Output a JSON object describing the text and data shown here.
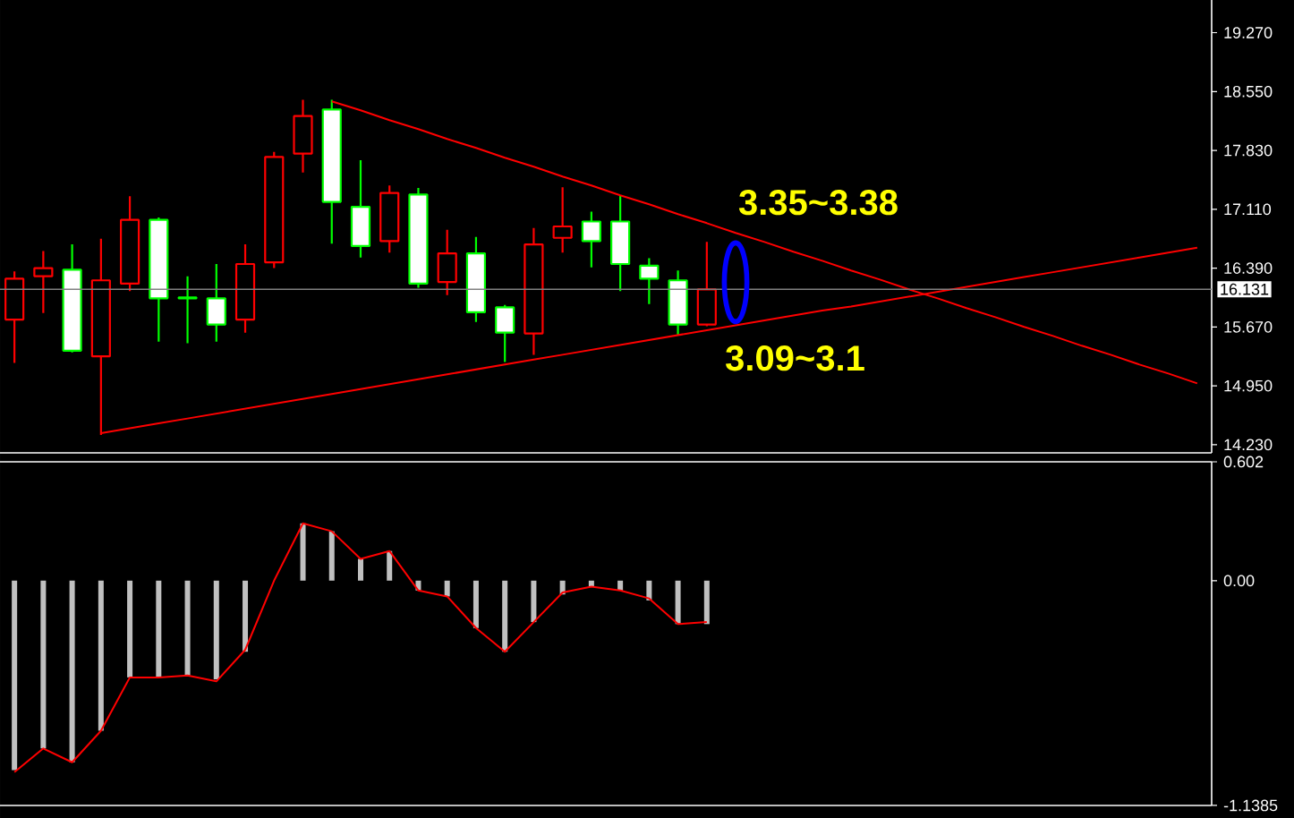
{
  "chart_data": [
    {
      "type": "candlestick",
      "categories": [
        null,
        null,
        null,
        null,
        null,
        null,
        null,
        null,
        null,
        null,
        null,
        null,
        null,
        null,
        null,
        null,
        null,
        null,
        null,
        null,
        null,
        null,
        null,
        null,
        null,
        null,
        null,
        null,
        null,
        null,
        null,
        null,
        null,
        null,
        null,
        null,
        null,
        null,
        null,
        null,
        null,
        null
      ],
      "ohlc": [
        [
          15.76,
          16.35,
          15.23,
          16.26
        ],
        [
          16.29,
          16.6,
          15.84,
          16.39
        ],
        [
          16.37,
          16.68,
          15.36,
          15.38
        ],
        [
          15.31,
          16.75,
          14.35,
          16.24
        ],
        [
          16.2,
          17.27,
          16.11,
          16.98
        ],
        [
          16.98,
          17.01,
          15.49,
          16.02
        ],
        [
          16.03,
          16.29,
          15.47,
          16.02
        ],
        [
          16.02,
          16.44,
          15.49,
          15.7
        ],
        [
          15.76,
          16.68,
          15.6,
          16.44
        ],
        [
          16.46,
          17.81,
          16.39,
          17.75
        ],
        [
          17.79,
          18.45,
          17.56,
          18.25
        ],
        [
          18.33,
          18.45,
          16.69,
          17.2
        ],
        [
          17.14,
          17.71,
          16.52,
          16.66
        ],
        [
          16.72,
          17.4,
          16.58,
          17.31
        ],
        [
          17.29,
          17.37,
          16.15,
          16.2
        ],
        [
          16.22,
          16.86,
          16.06,
          16.57
        ],
        [
          16.57,
          16.77,
          15.73,
          15.85
        ],
        [
          15.91,
          15.94,
          15.24,
          15.6
        ],
        [
          15.59,
          16.88,
          15.33,
          16.68
        ],
        [
          16.76,
          17.38,
          16.58,
          16.9
        ],
        [
          16.96,
          17.08,
          16.4,
          16.72
        ],
        [
          16.96,
          17.28,
          16.11,
          16.44
        ],
        [
          16.42,
          16.51,
          15.95,
          16.26
        ],
        [
          16.24,
          16.36,
          15.57,
          15.7
        ],
        [
          15.7,
          16.71,
          15.68,
          16.13
        ],
        null,
        null,
        null,
        null,
        null,
        null,
        null,
        null,
        null,
        null,
        null,
        null,
        null,
        null,
        null,
        null,
        null
      ],
      "colors": [
        "#ff0000",
        "#ff0000",
        "#00ff00",
        "#ff0000",
        "#ff0000",
        "#00ff00",
        "#00ff00",
        "#00ff00",
        "#ff0000",
        "#ff0000",
        "#ff0000",
        "#00ff00",
        "#00ff00",
        "#ff0000",
        "#00ff00",
        "#ff0000",
        "#00ff00",
        "#00ff00",
        "#ff0000",
        "#ff0000",
        "#00ff00",
        "#00ff00",
        "#00ff00",
        "#00ff00",
        "#ff0000",
        null,
        null,
        null,
        null,
        null,
        null,
        null,
        null,
        null,
        null,
        null,
        null,
        null,
        null,
        null,
        null,
        null
      ],
      "series": [
        {
          "type": "line",
          "color": "#ff0000",
          "values": [
            null,
            null,
            null,
            null,
            null,
            null,
            null,
            null,
            null,
            null,
            null,
            18.43,
            18.32,
            18.2,
            18.09,
            17.97,
            17.86,
            17.74,
            17.63,
            17.51,
            17.4,
            17.28,
            17.17,
            17.05,
            16.94,
            16.82,
            16.71,
            16.59,
            16.48,
            16.36,
            16.25,
            16.13,
            16.02,
            15.9,
            15.79,
            15.67,
            15.56,
            15.44,
            15.33,
            15.21,
            15.1,
            14.98
          ]
        },
        {
          "type": "line",
          "color": "#ff0000",
          "values": [
            null,
            null,
            null,
            14.37,
            14.43,
            14.49,
            14.55,
            14.61,
            14.67,
            14.73,
            14.79,
            14.85,
            14.91,
            14.97,
            15.03,
            15.09,
            15.15,
            15.21,
            15.27,
            15.33,
            15.39,
            15.45,
            15.51,
            15.57,
            15.63,
            15.69,
            15.75,
            15.81,
            15.87,
            15.92,
            15.98,
            16.04,
            16.1,
            16.16,
            16.22,
            16.28,
            16.34,
            16.4,
            16.46,
            16.52,
            16.58,
            16.64
          ]
        }
      ],
      "ylim": [
        14.13,
        19.67
      ],
      "yticks": [
        {
          "value": 14.23,
          "label": "14.230"
        },
        {
          "value": 14.95,
          "label": "14.950"
        },
        {
          "value": 15.67,
          "label": "15.670"
        },
        {
          "value": 16.39,
          "label": "16.390"
        },
        {
          "value": 17.11,
          "label": "17.110"
        },
        {
          "value": 17.83,
          "label": "17.830"
        },
        {
          "value": 18.55,
          "label": "18.550"
        },
        {
          "value": 19.27,
          "label": "19.270"
        }
      ],
      "tick_labels": "y",
      "ref_lines": [
        {
          "axis": "y",
          "value": 16.131,
          "label": "16.131",
          "color": "#808080"
        }
      ],
      "annotations": [
        "3.35~3.38",
        "3.09~3.1"
      ]
    },
    {
      "type": "bar",
      "categories": [
        null,
        null,
        null,
        null,
        null,
        null,
        null,
        null,
        null,
        null,
        null,
        null,
        null,
        null,
        null,
        null,
        null,
        null,
        null,
        null,
        null,
        null,
        null,
        null,
        null,
        null,
        null,
        null,
        null,
        null,
        null,
        null,
        null,
        null,
        null,
        null,
        null,
        null,
        null,
        null,
        null,
        null
      ],
      "series": [
        {
          "color": "#c0c0c0",
          "values": [
            -0.96,
            -0.85,
            -0.92,
            -0.76,
            -0.49,
            -0.49,
            -0.48,
            -0.5,
            -0.36,
            0.0,
            0.29,
            0.25,
            0.11,
            0.15,
            -0.05,
            -0.08,
            -0.24,
            -0.36,
            -0.21,
            -0.07,
            -0.03,
            -0.05,
            -0.1,
            -0.22,
            -0.22,
            null,
            null,
            null,
            null,
            null,
            null,
            null,
            null,
            null,
            null,
            null,
            null,
            null,
            null,
            null,
            null,
            null
          ]
        },
        {
          "type": "line",
          "color": "#ff0000",
          "values": [
            -0.97,
            -0.85,
            -0.92,
            -0.76,
            -0.49,
            -0.49,
            -0.48,
            -0.51,
            -0.35,
            0.0,
            0.29,
            0.25,
            0.11,
            0.15,
            -0.05,
            -0.08,
            -0.24,
            -0.36,
            -0.21,
            -0.06,
            -0.03,
            -0.05,
            -0.09,
            -0.22,
            -0.21,
            null,
            null,
            null,
            null,
            null,
            null,
            null,
            null,
            null,
            null,
            null,
            null,
            null,
            null,
            null,
            null,
            null
          ]
        }
      ],
      "ylim": [
        -1.1385,
        0.602
      ],
      "yticks": [
        0.602,
        {
          "value": 0,
          "label": "0.00"
        },
        -1.1385
      ],
      "tick_labels": "y"
    }
  ]
}
